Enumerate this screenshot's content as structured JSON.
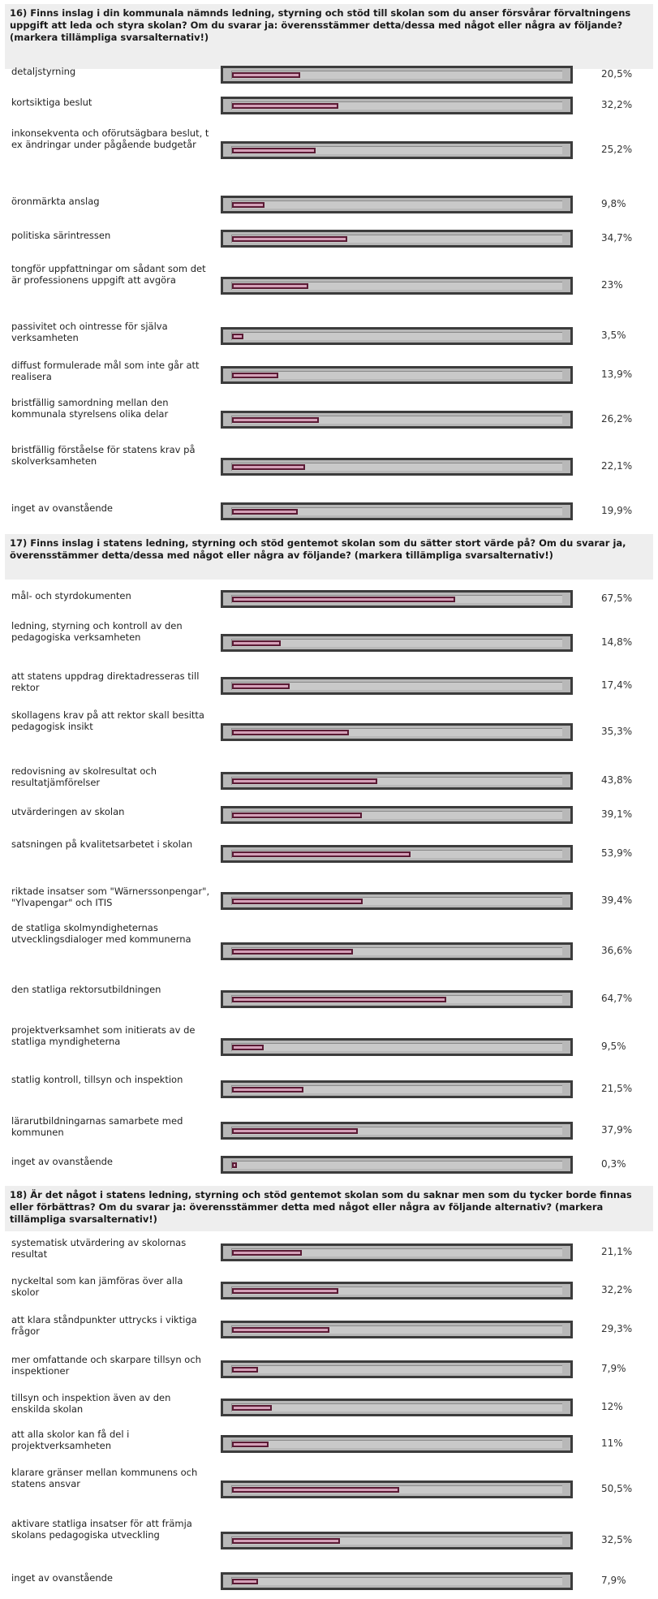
{
  "chart_data": [
    {
      "type": "bar",
      "title": "16) Finns inslag i din kommunala nämnds ledning, styrning och stöd till skolan som du anser försvårar förvaltningens uppgift att leda och styra skolan? Om du svarar ja: överensstämmer detta/dessa med något eller några av följande? (markera tillämpliga svarsalternativ!)",
      "categories": [
        "detaljstyrning",
        "kortsiktiga beslut",
        "inkonsekventa och oförutsägbara beslut, t ex ändringar under pågående budgetår",
        "öronmärkta anslag",
        "politiska särintressen",
        "tongför uppfattningar om sådant som det är professionens uppgift att avgöra",
        "passivitet och ointresse för själva verksamheten",
        "diffust formulerade mål som inte går att realisera",
        "bristfällig samordning mellan den kommunala styrelsens olika delar",
        "bristfällig förståelse för statens krav på skolverksamheten",
        "inget av ovanstående"
      ],
      "values": [
        20.5,
        32.2,
        25.2,
        9.8,
        34.7,
        23,
        3.5,
        13.9,
        26.2,
        22.1,
        19.9
      ],
      "value_labels": [
        "20,5%",
        "32,2%",
        "25,2%",
        "9,8%",
        "34,7%",
        "23%",
        "3,5%",
        "13,9%",
        "26,2%",
        "22,1%",
        "19,9%"
      ],
      "xlim": [
        0,
        100
      ]
    },
    {
      "type": "bar",
      "title": "17) Finns inslag i statens ledning, styrning och stöd gentemot skolan som du sätter stort värde på? Om du svarar ja, överensstämmer detta/dessa med något eller några av följande? (markera tillämpliga svarsalternativ!)",
      "categories": [
        "mål- och styrdokumenten",
        "ledning, styrning och kontroll av den pedagogiska verksamheten",
        "att statens uppdrag direktadresseras till rektor",
        "skollagens krav på att rektor skall besitta pedagogisk insikt",
        "redovisning av skolresultat och resultatjämförelser",
        "utvärderingen av skolan",
        "satsningen på kvalitetsarbetet i skolan",
        "riktade insatser som \"Wärnerssonpengar\", \"Ylvapengar\" och ITIS",
        "de statliga skolmyndigheternas utvecklingsdialoger med kommunerna",
        "den statliga rektorsutbildningen",
        "projektverksamhet som initierats av de statliga myndigheterna",
        "statlig kontroll, tillsyn och inspektion",
        "lärarutbildningarnas samarbete med kommunen",
        "inget av ovanstående"
      ],
      "values": [
        67.5,
        14.8,
        17.4,
        35.3,
        43.8,
        39.1,
        53.9,
        39.4,
        36.6,
        64.7,
        9.5,
        21.5,
        37.9,
        0.3
      ],
      "value_labels": [
        "67,5%",
        "14,8%",
        "17,4%",
        "35,3%",
        "43,8%",
        "39,1%",
        "53,9%",
        "39,4%",
        "36,6%",
        "64,7%",
        "9,5%",
        "21,5%",
        "37,9%",
        "0,3%"
      ],
      "xlim": [
        0,
        100
      ]
    },
    {
      "type": "bar",
      "title": "18) Är det något i statens ledning, styrning och stöd gentemot skolan som du saknar men som du tycker borde finnas eller förbättras? Om du svarar ja: överensstämmer detta med något eller några av följande alternativ? (markera tillämpliga svarsalternativ!)",
      "categories": [
        "systematisk utvärdering av skolornas resultat",
        "nyckeltal som kan jämföras över alla skolor",
        "att klara ståndpunkter uttrycks i viktiga frågor",
        "mer omfattande och skarpare tillsyn och inspektioner",
        "tillsyn och inspektion även av den enskilda skolan",
        "att alla skolor kan få del i projektverksamheten",
        "klarare gränser mellan kommunens och statens ansvar",
        "aktivare statliga insatser för att främja skolans pedagogiska utveckling",
        "inget av ovanstående"
      ],
      "values": [
        21.1,
        32.2,
        29.3,
        7.9,
        12,
        11,
        50.5,
        32.5,
        7.9
      ],
      "value_labels": [
        "21,1%",
        "32,2%",
        "29,3%",
        "7,9%",
        "12%",
        "11%",
        "50,5%",
        "32,5%",
        "7,9%"
      ],
      "xlim": [
        0,
        100
      ]
    }
  ]
}
